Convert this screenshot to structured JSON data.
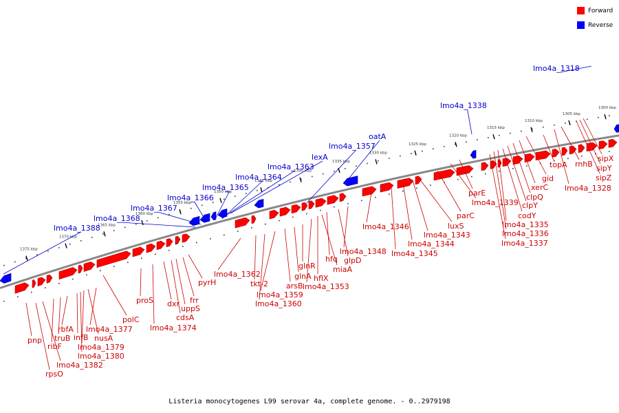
{
  "legend": [
    {
      "label": "Forward",
      "color": "#ff0000"
    },
    {
      "label": "Reverse",
      "color": "#0000ff"
    }
  ],
  "caption": "Listeria monocytogenes L99 serovar 4a, complete genome. - 0..2979198",
  "colors": {
    "forward": "#ff0000",
    "reverse": "#0000ff",
    "backbone": "#888888",
    "label_forward": "#cc0000",
    "label_reverse": "#0000cc"
  },
  "ruler": [
    "1300 kbp",
    "1305 kbp",
    "1310 kbp",
    "1315 kbp",
    "1320 kbp",
    "1325 kbp",
    "1330 kbp",
    "1335 kbp",
    "1340 kbp",
    "1345 kbp",
    "1350 kbp",
    "1355 kbp",
    "1360 kbp",
    "1365 kbp",
    "1370 kbp",
    "1375 kbp"
  ],
  "reverse_labels": [
    "lmo4a_1318",
    "lmo4a_1338",
    "oatA",
    "lmo4a_1357",
    "lexA",
    "lmo4a_1363",
    "lmo4a_1364",
    "lmo4a_1365",
    "lmo4a_1366",
    "lmo4a_1367",
    "lmo4a_1368",
    "lmo4a_1388"
  ],
  "forward_labels": [
    "sipX",
    "sipY",
    "sipZ",
    "rnhB",
    "lmo4a_1328",
    "topA",
    "gid",
    "xerC",
    "clpQ",
    "clpY",
    "codY",
    "lmo4a_1335",
    "lmo4a_1336",
    "lmo4a_1337",
    "parE",
    "lmo4a_1339",
    "parC",
    "luxS",
    "lmo4a_1343",
    "lmo4a_1344",
    "lmo4a_1345",
    "lmo4a_1346",
    "lmo4a_1348",
    "glpD",
    "hfq",
    "miaA",
    "hflX",
    "lmo4a_1353",
    "glnR",
    "glnA",
    "arsB",
    "lmo4a_1359",
    "lmo4a_1360",
    "tkt-2",
    "lmo4a_1362",
    "pyrH",
    "frr",
    "uppS",
    "cdsA",
    "dxr",
    "lmo4a_1374",
    "proS",
    "polC",
    "lmo4a_1377",
    "nusA",
    "lmo4a_1379",
    "lmo4a_1380",
    "infB",
    "rbfA",
    "truB",
    "ribF",
    "lmo4a_1382",
    "pnp",
    "rpsO"
  ]
}
